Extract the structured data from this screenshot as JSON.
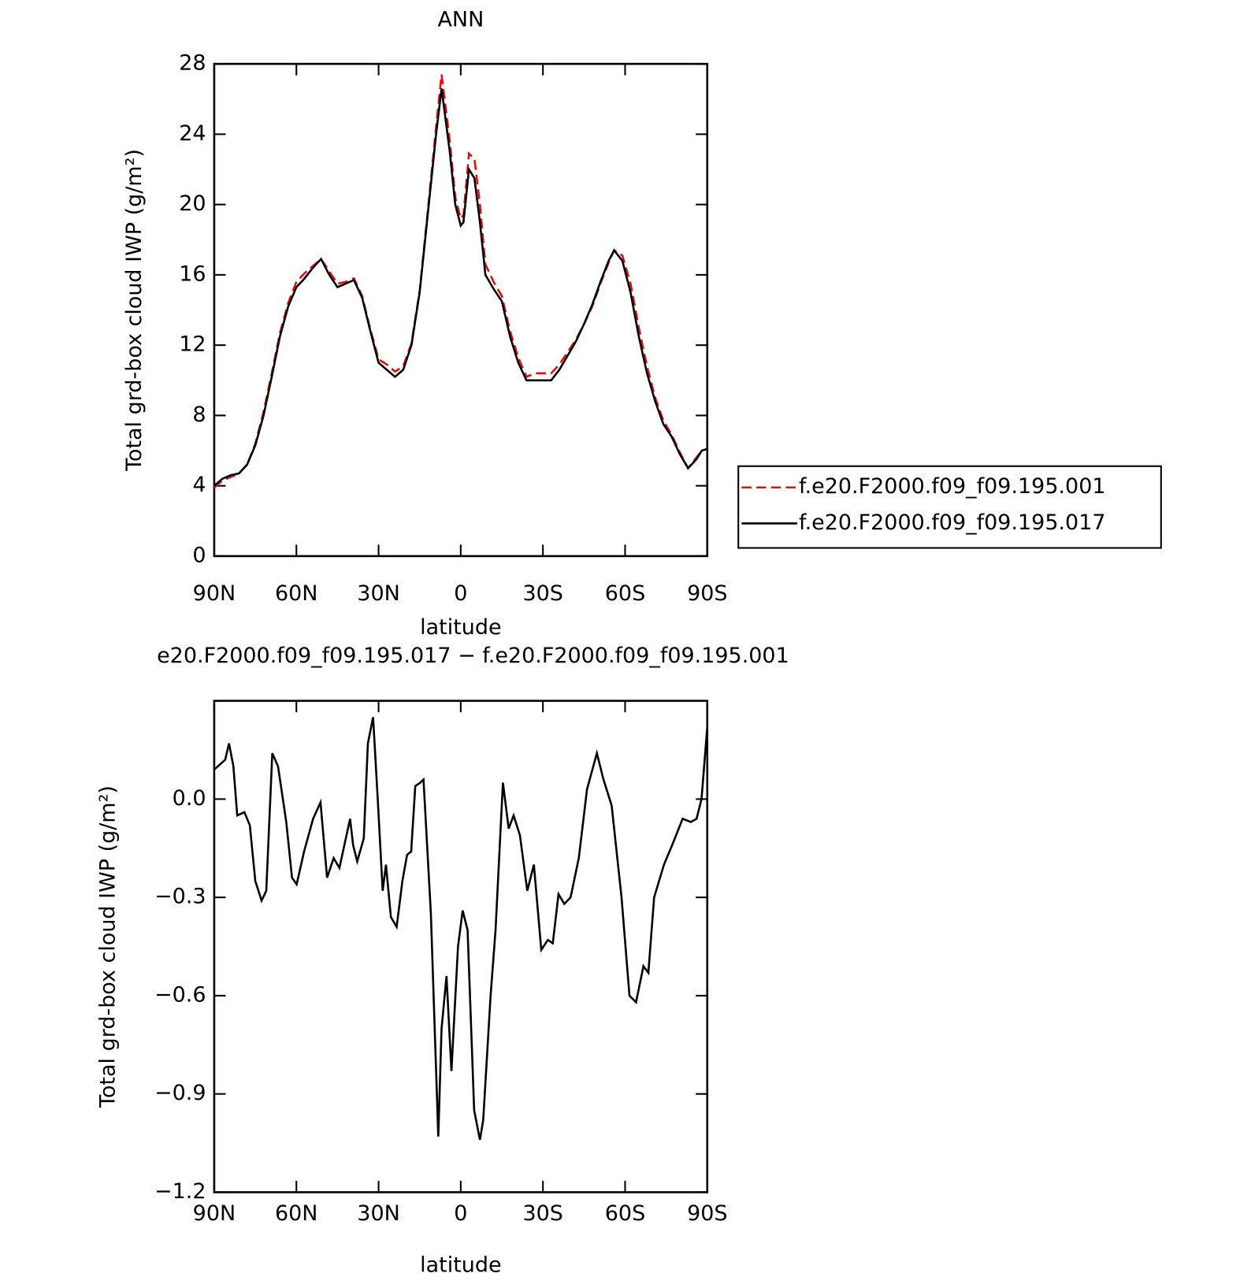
{
  "chart_data": [
    {
      "type": "line",
      "title": "ANN",
      "xlabel": "latitude",
      "ylabel": "Total grd-box cloud IWP (g/m²)",
      "x": [
        90,
        87,
        84,
        81,
        78,
        75,
        72,
        69,
        66,
        63,
        60,
        57,
        54,
        51,
        48,
        45,
        42,
        39,
        36,
        33,
        30,
        27,
        24,
        21,
        18,
        15,
        12,
        9,
        7,
        4,
        2,
        0,
        -1,
        -3,
        -5,
        -7,
        -9,
        -12,
        -15,
        -18,
        -21,
        -24,
        -27,
        -30,
        -33,
        -36,
        -39,
        -42,
        -45,
        -48,
        -51,
        -54,
        -56,
        -59,
        -62,
        -65,
        -68,
        -71,
        -74,
        -77,
        -80,
        -83,
        -86,
        -88,
        -90
      ],
      "series": [
        {
          "name": "f.e20.F2000.f09_f09.195.001",
          "color": "#e01010",
          "style": "dashed",
          "values": [
            3.9,
            4.3,
            4.5,
            4.7,
            5.2,
            6.4,
            8.2,
            10.4,
            12.7,
            14.4,
            15.6,
            16.1,
            16.5,
            16.9,
            16.2,
            15.5,
            15.6,
            15.8,
            14.8,
            12.9,
            11.2,
            10.9,
            10.5,
            10.8,
            12.1,
            15.1,
            19.7,
            24.4,
            27.4,
            23.6,
            20.4,
            19.2,
            19.4,
            22.9,
            22.6,
            20.0,
            16.6,
            15.6,
            14.8,
            12.8,
            11.3,
            10.2,
            10.4,
            10.4,
            10.4,
            10.9,
            11.6,
            12.3,
            13.2,
            14.2,
            15.5,
            16.7,
            17.4,
            17.1,
            15.5,
            13.0,
            10.8,
            9.0,
            7.7,
            6.9,
            5.9,
            5.0,
            5.6,
            6.0,
            6.1
          ]
        },
        {
          "name": "f.e20.F2000.f09_f09.195.017",
          "color": "#000000",
          "style": "solid",
          "values": [
            4.0,
            4.4,
            4.6,
            4.7,
            5.2,
            6.3,
            8.0,
            10.2,
            12.5,
            14.2,
            15.3,
            15.8,
            16.4,
            16.9,
            16.0,
            15.3,
            15.5,
            15.7,
            14.7,
            12.8,
            11.0,
            10.6,
            10.2,
            10.6,
            12.0,
            15.0,
            19.5,
            24.0,
            26.6,
            23.0,
            20.0,
            18.8,
            19.0,
            22.0,
            21.5,
            19.0,
            16.0,
            15.2,
            14.5,
            12.5,
            11.0,
            10.0,
            10.0,
            10.0,
            10.0,
            10.6,
            11.4,
            12.2,
            13.2,
            14.3,
            15.6,
            16.8,
            17.4,
            16.8,
            15.0,
            12.5,
            10.4,
            8.8,
            7.5,
            6.8,
            5.8,
            5.0,
            5.5,
            6.0,
            6.1
          ]
        }
      ],
      "xlim": [
        90,
        -90
      ],
      "xticks": [
        {
          "value": 90,
          "label": "90N"
        },
        {
          "value": 60,
          "label": "60N"
        },
        {
          "value": 30,
          "label": "30N"
        },
        0,
        {
          "value": -30,
          "label": "30S"
        },
        {
          "value": -60,
          "label": "60S"
        },
        {
          "value": -90,
          "label": "90S"
        }
      ],
      "ylim": [
        0,
        28
      ],
      "yticks": [
        0,
        4,
        8,
        12,
        16,
        20,
        24,
        28
      ],
      "legend": "right"
    },
    {
      "type": "line",
      "title": "e20.F2000.f09_f09.195.017 − f.e20.F2000.f09_f09.195.001",
      "xlabel": "latitude",
      "ylabel": "Total grd-box cloud IWP (g/m²)",
      "x": [
        90,
        86,
        84.6,
        83,
        81.6,
        79,
        77,
        75,
        72.7,
        71,
        68.8,
        66.7,
        63.7,
        61.6,
        59.9,
        57.2,
        53.9,
        51.2,
        48.8,
        46.4,
        44.3,
        40.4,
        39.3,
        37.8,
        35.4,
        33.9,
        32,
        30.3,
        28.5,
        27.3,
        25.5,
        23.4,
        21.3,
        19.6,
        18.1,
        16.6,
        14.8,
        13.6,
        10.9,
        8.2,
        7,
        5.2,
        3.4,
        1,
        -0.7,
        -2.5,
        -4.9,
        -7,
        -8.2,
        -10.9,
        -12.7,
        -15.4,
        -17.5,
        -19.3,
        -21.6,
        -24.3,
        -26.7,
        -29.4,
        -31.8,
        -33.6,
        -35.7,
        -37.8,
        -40.1,
        -43.1,
        -46.1,
        -49.7,
        -52.1,
        -55.1,
        -58.7,
        -61.6,
        -64,
        -66.7,
        -68.5,
        -70.6,
        -74.2,
        -77.2,
        -81,
        -84,
        -86.1,
        -87.9,
        -90
      ],
      "color": "#000000",
      "values": [
        0.09,
        0.12,
        0.17,
        0.1,
        -0.05,
        -0.04,
        -0.08,
        -0.25,
        -0.31,
        -0.28,
        0.14,
        0.1,
        -0.07,
        -0.24,
        -0.26,
        -0.16,
        -0.06,
        -0.01,
        -0.24,
        -0.18,
        -0.21,
        -0.06,
        -0.14,
        -0.19,
        -0.12,
        0.17,
        0.25,
        0.0,
        -0.28,
        -0.2,
        -0.36,
        -0.39,
        -0.25,
        -0.17,
        -0.16,
        0.04,
        0.05,
        0.06,
        -0.35,
        -1.03,
        -0.7,
        -0.54,
        -0.83,
        -0.45,
        -0.34,
        -0.4,
        -0.95,
        -1.04,
        -0.98,
        -0.6,
        -0.4,
        0.05,
        -0.09,
        -0.05,
        -0.11,
        -0.28,
        -0.2,
        -0.46,
        -0.43,
        -0.44,
        -0.29,
        -0.32,
        -0.3,
        -0.18,
        0.03,
        0.14,
        0.06,
        -0.02,
        -0.3,
        -0.6,
        -0.62,
        -0.51,
        -0.53,
        -0.3,
        -0.2,
        -0.14,
        -0.06,
        -0.07,
        -0.06,
        0.0,
        0.22
      ],
      "xlim": [
        90,
        -90
      ],
      "xticks": [
        {
          "value": 90,
          "label": "90N"
        },
        {
          "value": 60,
          "label": "60N"
        },
        {
          "value": 30,
          "label": "30N"
        },
        0,
        {
          "value": -30,
          "label": "30S"
        },
        {
          "value": -60,
          "label": "60S"
        },
        {
          "value": -90,
          "label": "90S"
        }
      ],
      "ylim": [
        -1.2,
        0.3
      ],
      "yticks": [
        {
          "value": -1.2,
          "label": "−1.2"
        },
        {
          "value": -0.9,
          "label": "−0.9"
        },
        {
          "value": -0.6,
          "label": "−0.6"
        },
        {
          "value": -0.3,
          "label": "−0.3"
        },
        {
          "value": 0,
          "label": "0.0"
        }
      ]
    }
  ]
}
